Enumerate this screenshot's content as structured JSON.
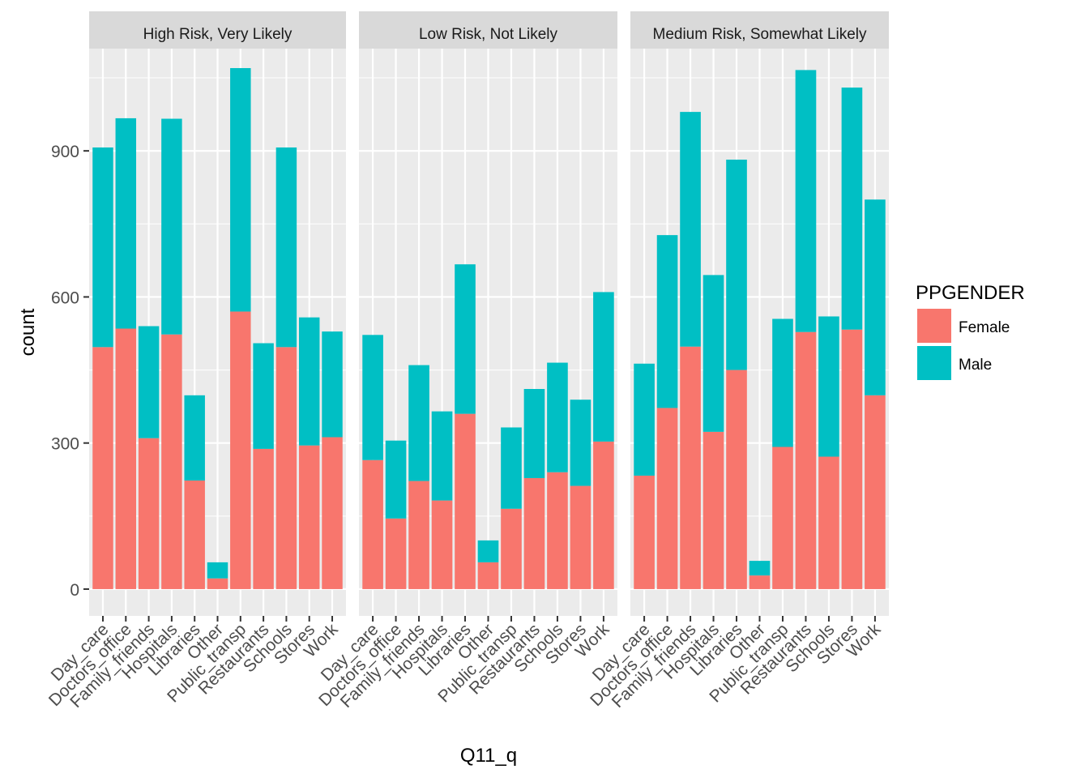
{
  "chart_data": {
    "type": "bar",
    "stacked": true,
    "xlabel": "Q11_q",
    "ylabel": "count",
    "ylim": [
      -55,
      1110
    ],
    "yticks": [
      0,
      300,
      600,
      900
    ],
    "grid": true,
    "legend": {
      "title": "PPGENDER",
      "placement": "right",
      "entries": [
        {
          "label": "Female",
          "color": "#F8766D"
        },
        {
          "label": "Male",
          "color": "#00BFC4"
        }
      ]
    },
    "categories": [
      "Day_care",
      "Doctors_office",
      "Family_friends",
      "Hospitals",
      "Libraries",
      "Other",
      "Public_transp",
      "Restaurants",
      "Schools",
      "Stores",
      "Work"
    ],
    "panels": [
      {
        "title": "High Risk, Very Likely",
        "series": [
          {
            "name": "Female",
            "values": [
              497,
              535,
              310,
              523,
              223,
              22,
              570,
              288,
              497,
              295,
              312
            ]
          },
          {
            "name": "Male",
            "values": [
              410,
              432,
              230,
              443,
              175,
              33,
              500,
              217,
              410,
              263,
              217
            ]
          }
        ]
      },
      {
        "title": "Low Risk, Not Likely",
        "series": [
          {
            "name": "Female",
            "values": [
              265,
              145,
              222,
              182,
              360,
              55,
              165,
              228,
              240,
              212,
              303
            ]
          },
          {
            "name": "Male",
            "values": [
              257,
              160,
              238,
              183,
              307,
              45,
              167,
              183,
              225,
              177,
              307
            ]
          }
        ]
      },
      {
        "title": "Medium Risk, Somewhat Likely",
        "series": [
          {
            "name": "Female",
            "values": [
              233,
              372,
              498,
              323,
              450,
              28,
              292,
              528,
              272,
              533,
              398
            ]
          },
          {
            "name": "Male",
            "values": [
              230,
              355,
              482,
              322,
              432,
              30,
              263,
              538,
              288,
              497,
              402
            ]
          }
        ]
      }
    ]
  }
}
